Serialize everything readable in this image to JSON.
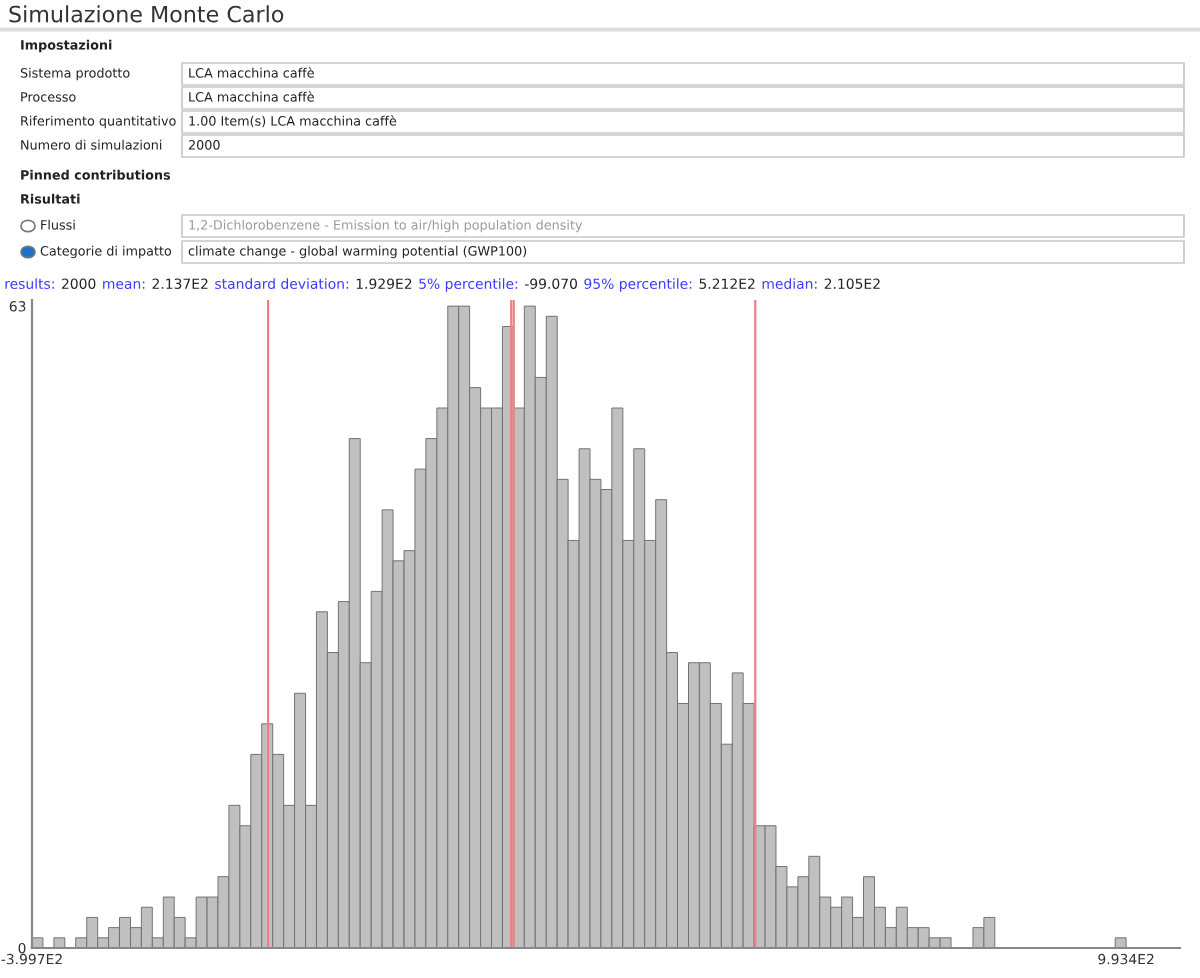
{
  "chart_data": {
    "type": "histogram",
    "title": "Simulazione Monte Carlo",
    "bins": [
      -399.7,
      -385.8,
      -371.8,
      -357.9,
      -344.0,
      -330.0,
      -316.1,
      -302.2,
      -288.3,
      -274.3,
      -260.4,
      -246.5,
      -232.5,
      -218.6,
      -204.7,
      -190.7,
      -176.8,
      -162.9,
      -149.0,
      -135.0,
      -121.1,
      -107.2,
      -93.2,
      -79.3,
      -65.4,
      -51.4,
      -37.5,
      -23.6,
      -9.6,
      4.3,
      18.2,
      32.2,
      46.1,
      60.0,
      74.0,
      87.9,
      101.8,
      115.8,
      129.7,
      143.6,
      157.5,
      171.5,
      185.4,
      199.3,
      213.3,
      227.2,
      241.1,
      255.1,
      269.0,
      282.9,
      296.9,
      310.8,
      324.7,
      338.6,
      352.6,
      366.5,
      380.4,
      394.4,
      408.3,
      422.2,
      436.2,
      450.1,
      464.0,
      478.0,
      491.9,
      505.8,
      519.8,
      533.7,
      547.6,
      561.5,
      575.5,
      589.4,
      603.3,
      617.3,
      631.2,
      645.1,
      659.0,
      673.0,
      686.9,
      700.8,
      714.8,
      728.7,
      742.6,
      756.6,
      770.5,
      784.4,
      798.4,
      812.3,
      826.2,
      840.2,
      854.1,
      868.0,
      881.9,
      895.9,
      909.8,
      923.7,
      937.7,
      951.6,
      965.5,
      979.5,
      993.4
    ],
    "values": [
      1,
      0,
      1,
      0,
      1,
      3,
      1,
      2,
      3,
      2,
      4,
      1,
      5,
      3,
      1,
      5,
      5,
      7,
      14,
      12,
      19,
      22,
      19,
      14,
      25,
      14,
      33,
      29,
      34,
      50,
      28,
      35,
      43,
      38,
      39,
      47,
      50,
      53,
      63,
      63,
      55,
      53,
      53,
      61,
      53,
      63,
      56,
      62,
      46,
      40,
      49,
      46,
      45,
      53,
      40,
      49,
      40,
      44,
      29,
      24,
      28,
      28,
      24,
      20,
      27,
      24,
      12,
      12,
      8,
      6,
      7,
      9,
      5,
      4,
      5,
      3,
      7,
      4,
      2,
      4,
      2,
      2,
      1,
      1,
      0,
      0,
      2,
      3,
      0,
      0,
      0,
      0,
      0,
      0,
      0,
      0,
      0,
      0,
      0,
      1
    ],
    "color": "#c0c0c0",
    "xlim": [
      -399.7,
      1062
    ],
    "ylim": [
      0,
      63.6
    ],
    "xticks": [
      {
        "value": -399.7,
        "label": "-3.997E2"
      },
      {
        "value": 993.4,
        "label": "9.934E2"
      }
    ],
    "yticks": [
      0,
      63
    ],
    "ref_lines": [
      {
        "axis": "x",
        "value": -99.07,
        "color": "#f08080"
      },
      {
        "axis": "x",
        "value": 213.7,
        "color": "#f08080"
      },
      {
        "axis": "x",
        "value": 210.5,
        "color": "#f08080"
      },
      {
        "axis": "x",
        "value": 521.2,
        "color": "#f08080"
      }
    ],
    "annotations": [
      "Impostazioni",
      "Sistema prodotto",
      "LCA macchina caffè",
      "Processo",
      "LCA macchina caffè",
      "Riferimento quantitativo",
      "1.00 Item(s) LCA macchina caffè",
      "Numero di simulazioni",
      "2000",
      "Pinned contributions",
      "Risultati",
      "Flussi",
      "1,2-Dichlorobenzene - Emission to air/high population density",
      "Categorie di impatto",
      "climate change - global warming potential (GWP100)",
      "results:",
      "2000",
      "mean:",
      "2.137E2",
      "standard deviation:",
      "1.929E2",
      "5% percentile:",
      "-99.070",
      "95% percentile:",
      "5.212E2",
      "median:",
      "2.105E2"
    ]
  }
}
